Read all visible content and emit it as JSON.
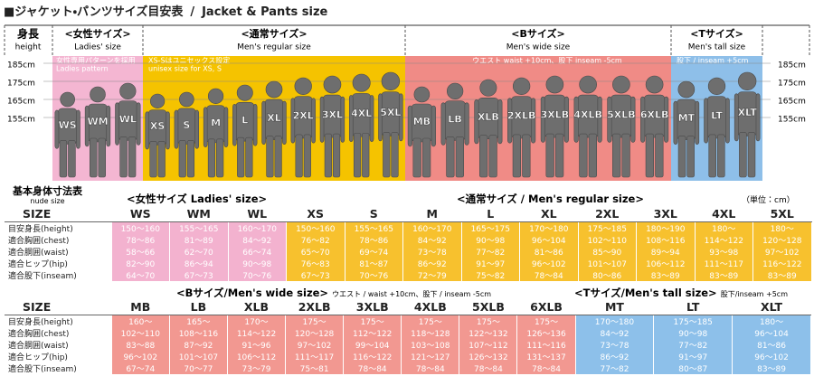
{
  "header": {
    "title": "■ジャケット・パンツサイズ目安表",
    "separator": "/",
    "title_en": "Jacket & Pants size"
  },
  "figure": {
    "height_label": "身長",
    "height_label_en": "height",
    "height_marks": [
      "185cm",
      "175cm",
      "165cm",
      "155cm"
    ],
    "groups": [
      {
        "title": "<女性サイズ>",
        "subtitle": "Ladies' size",
        "note": [
          "女性専用パターンを採用",
          "Ladies pattern"
        ],
        "sizes": [
          "WS",
          "WM",
          "WL"
        ]
      },
      {
        "title": "<通常サイズ>",
        "subtitle": "Men's regular size",
        "note": [
          "XS-Sはユニセックス設定",
          "unisex size for XS, S"
        ],
        "sizes": [
          "XS",
          "S",
          "M",
          "L",
          "XL",
          "2XL",
          "3XL",
          "4XL",
          "5XL"
        ]
      },
      {
        "title": "<Bサイズ>",
        "subtitle": "Men's wide size",
        "note": [
          "ウエスト waist +10cm、股下 inseam -5cm"
        ],
        "sizes": [
          "MB",
          "LB",
          "XLB",
          "2XLB",
          "3XLB",
          "4XLB",
          "5XLB",
          "6XLB"
        ]
      },
      {
        "title": "<Tサイズ>",
        "subtitle": "Men's tall size",
        "note": [
          "股下 / inseam +5cm"
        ],
        "sizes": [
          "MT",
          "LT",
          "XLT"
        ]
      }
    ]
  },
  "nude_size": {
    "title": "基本身体寸法表",
    "subtitle": "nude size",
    "unit": "（単位：cm）"
  },
  "table1": {
    "headings": [
      "<女性サイズ Ladies' size>",
      "<通常サイズ / Men's regular size>"
    ],
    "size_label": "SIZE",
    "sizes": [
      "WS",
      "WM",
      "WL",
      "XS",
      "S",
      "M",
      "L",
      "XL",
      "2XL",
      "3XL",
      "4XL",
      "5XL"
    ],
    "rows": [
      {
        "label": "目安身長(height)",
        "values": [
          "150〜160",
          "155〜165",
          "160〜170",
          "150〜160",
          "155〜165",
          "160〜170",
          "165〜175",
          "170〜180",
          "175〜185",
          "180〜190",
          "180〜",
          "180〜"
        ]
      },
      {
        "label": "適合胸囲(chest)",
        "values": [
          "78〜86",
          "81〜89",
          "84〜92",
          "76〜82",
          "78〜86",
          "84〜92",
          "90〜98",
          "96〜104",
          "102〜110",
          "108〜116",
          "114〜122",
          "120〜128"
        ]
      },
      {
        "label": "適合胴囲(waist)",
        "values": [
          "58〜66",
          "62〜70",
          "66〜74",
          "65〜70",
          "69〜74",
          "73〜78",
          "77〜82",
          "81〜86",
          "85〜90",
          "89〜94",
          "93〜98",
          "97〜102"
        ]
      },
      {
        "label": "適合ヒップ(hip)",
        "values": [
          "82〜90",
          "86〜94",
          "90〜98",
          "76〜83",
          "81〜87",
          "86〜92",
          "91〜97",
          "96〜102",
          "101〜107",
          "106〜112",
          "111〜117",
          "116〜122"
        ]
      },
      {
        "label": "適合股下(inseam)",
        "values": [
          "64〜70",
          "67〜73",
          "70〜76",
          "67〜73",
          "70〜76",
          "72〜79",
          "75〜82",
          "78〜84",
          "80〜86",
          "83〜89",
          "83〜89",
          "83〜89"
        ]
      }
    ]
  },
  "table2": {
    "headings": [
      {
        "text": "<Bサイズ/Men's wide size>",
        "note": "ウエスト / waist +10cm、股下 / inseam -5cm"
      },
      {
        "text": "<Tサイズ/Men's tall size>",
        "note": "股下/inseam +5cm"
      }
    ],
    "size_label": "SIZE",
    "sizes": [
      "MB",
      "LB",
      "XLB",
      "2XLB",
      "3XLB",
      "4XLB",
      "5XLB",
      "6XLB",
      "MT",
      "LT",
      "XLT"
    ],
    "rows": [
      {
        "label": "目安身長(height)",
        "values": [
          "160〜",
          "165〜",
          "170〜",
          "175〜",
          "175〜",
          "175〜",
          "175〜",
          "175〜",
          "170〜180",
          "175〜185",
          "180〜"
        ]
      },
      {
        "label": "適合胸囲(chest)",
        "values": [
          "102〜110",
          "108〜116",
          "114〜122",
          "120〜128",
          "112〜122",
          "118〜128",
          "122〜132",
          "126〜136",
          "84〜92",
          "90〜98",
          "96〜104"
        ]
      },
      {
        "label": "適合胴囲(waist)",
        "values": [
          "83〜88",
          "87〜92",
          "91〜96",
          "97〜102",
          "99〜104",
          "103〜108",
          "107〜112",
          "111〜116",
          "73〜78",
          "77〜82",
          "81〜86"
        ]
      },
      {
        "label": "適合ヒップ(hip)",
        "values": [
          "96〜102",
          "101〜107",
          "106〜112",
          "111〜117",
          "116〜122",
          "121〜127",
          "126〜132",
          "131〜137",
          "86〜92",
          "91〜97",
          "96〜102"
        ]
      },
      {
        "label": "適合股下(inseam)",
        "values": [
          "67〜74",
          "70〜77",
          "73〜79",
          "75〜81",
          "78〜84",
          "78〜84",
          "78〜84",
          "78〜84",
          "77〜82",
          "80〜87",
          "83〜89"
        ]
      }
    ]
  }
}
